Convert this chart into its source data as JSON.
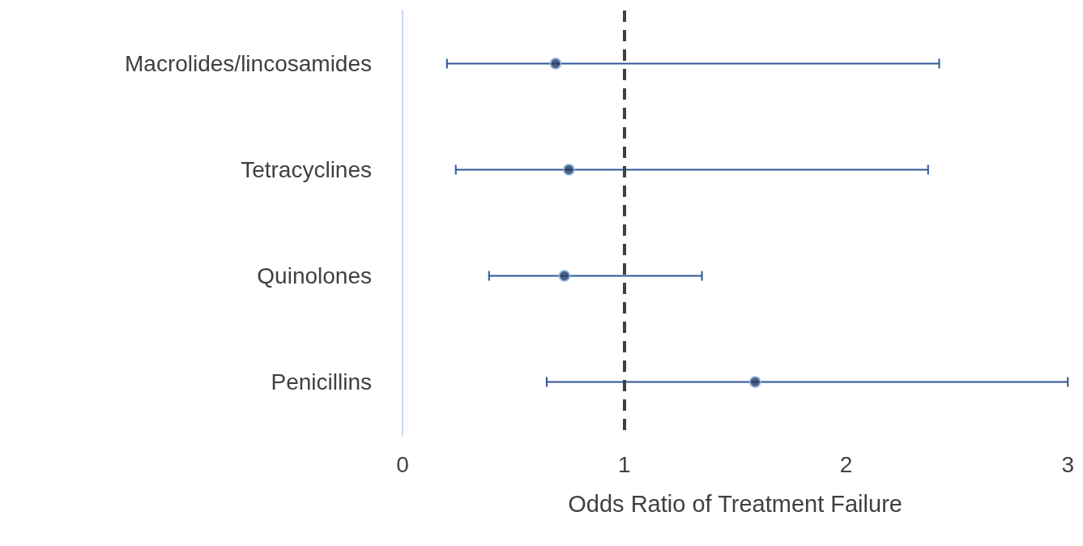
{
  "chart_data": {
    "type": "scatter",
    "orientation": "horizontal",
    "xlabel": "Odds Ratio of Treatment Failure",
    "categories": [
      "Macrolides/lincosamides",
      "Tetracyclines",
      "Quinolones",
      "Penicillins"
    ],
    "series": [
      {
        "color": "#1f3864",
        "values": [
          0.69,
          0.75,
          0.73,
          1.59
        ],
        "errors": [
          [
            0.2,
            2.42
          ],
          [
            0.24,
            2.37
          ],
          [
            0.39,
            1.35
          ],
          [
            0.65,
            3
          ]
        ]
      }
    ],
    "xlim": [
      0,
      3
    ],
    "xticks": [
      0,
      1,
      2,
      3
    ],
    "marker": "circle",
    "grid": false,
    "ref_lines": [
      {
        "axis": "x",
        "value": 1,
        "color": "#404040",
        "line_style": "dashed"
      }
    ]
  }
}
